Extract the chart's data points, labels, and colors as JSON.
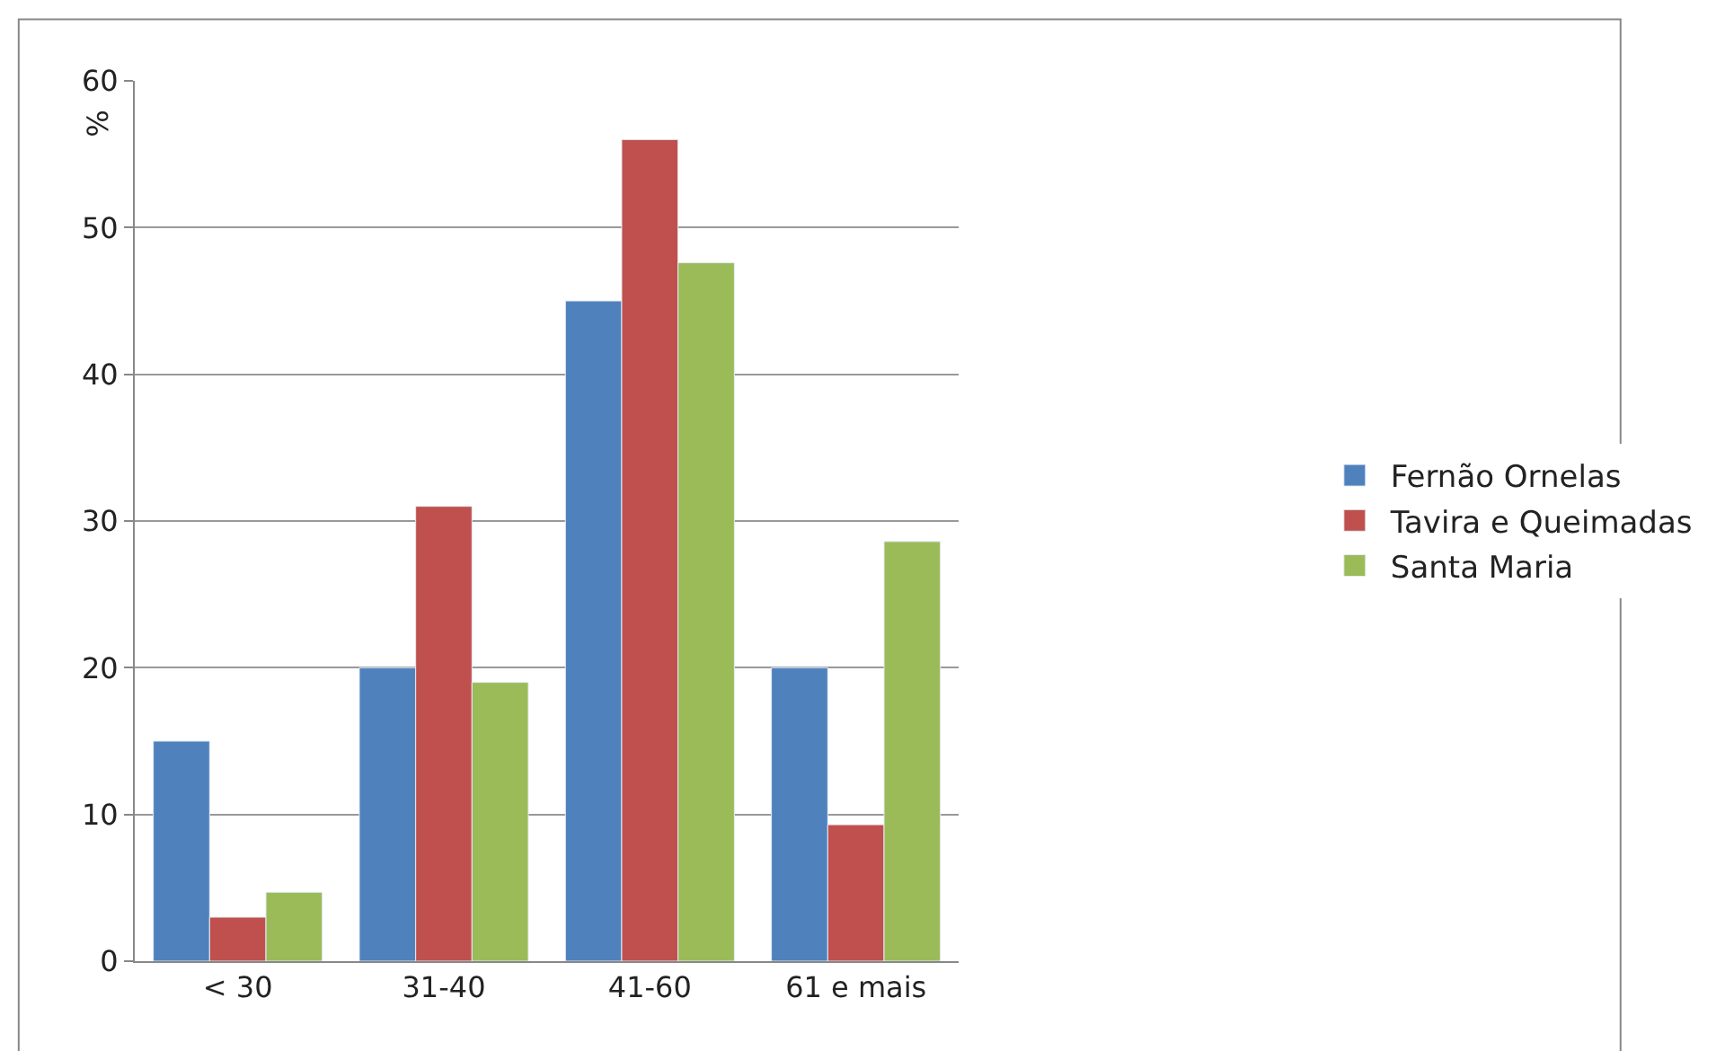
{
  "chart_data": {
    "type": "bar",
    "ylabel": "%",
    "categories": [
      "< 30",
      "31-40",
      "41-60",
      "61 e mais"
    ],
    "series": [
      {
        "name": "Fernão Ornelas",
        "color": "#4f81bd",
        "values": [
          15,
          20,
          45,
          20
        ]
      },
      {
        "name": "Tavira e Queimadas",
        "color": "#c0504d",
        "values": [
          3,
          31,
          56,
          9.3
        ]
      },
      {
        "name": "Santa Maria",
        "color": "#9bbb59",
        "values": [
          4.7,
          19,
          47.6,
          28.6
        ]
      }
    ],
    "ylim": [
      0,
      60
    ],
    "yticks": [
      0,
      10,
      20,
      30,
      40,
      50,
      60
    ],
    "grid": "y",
    "legend": "right"
  }
}
